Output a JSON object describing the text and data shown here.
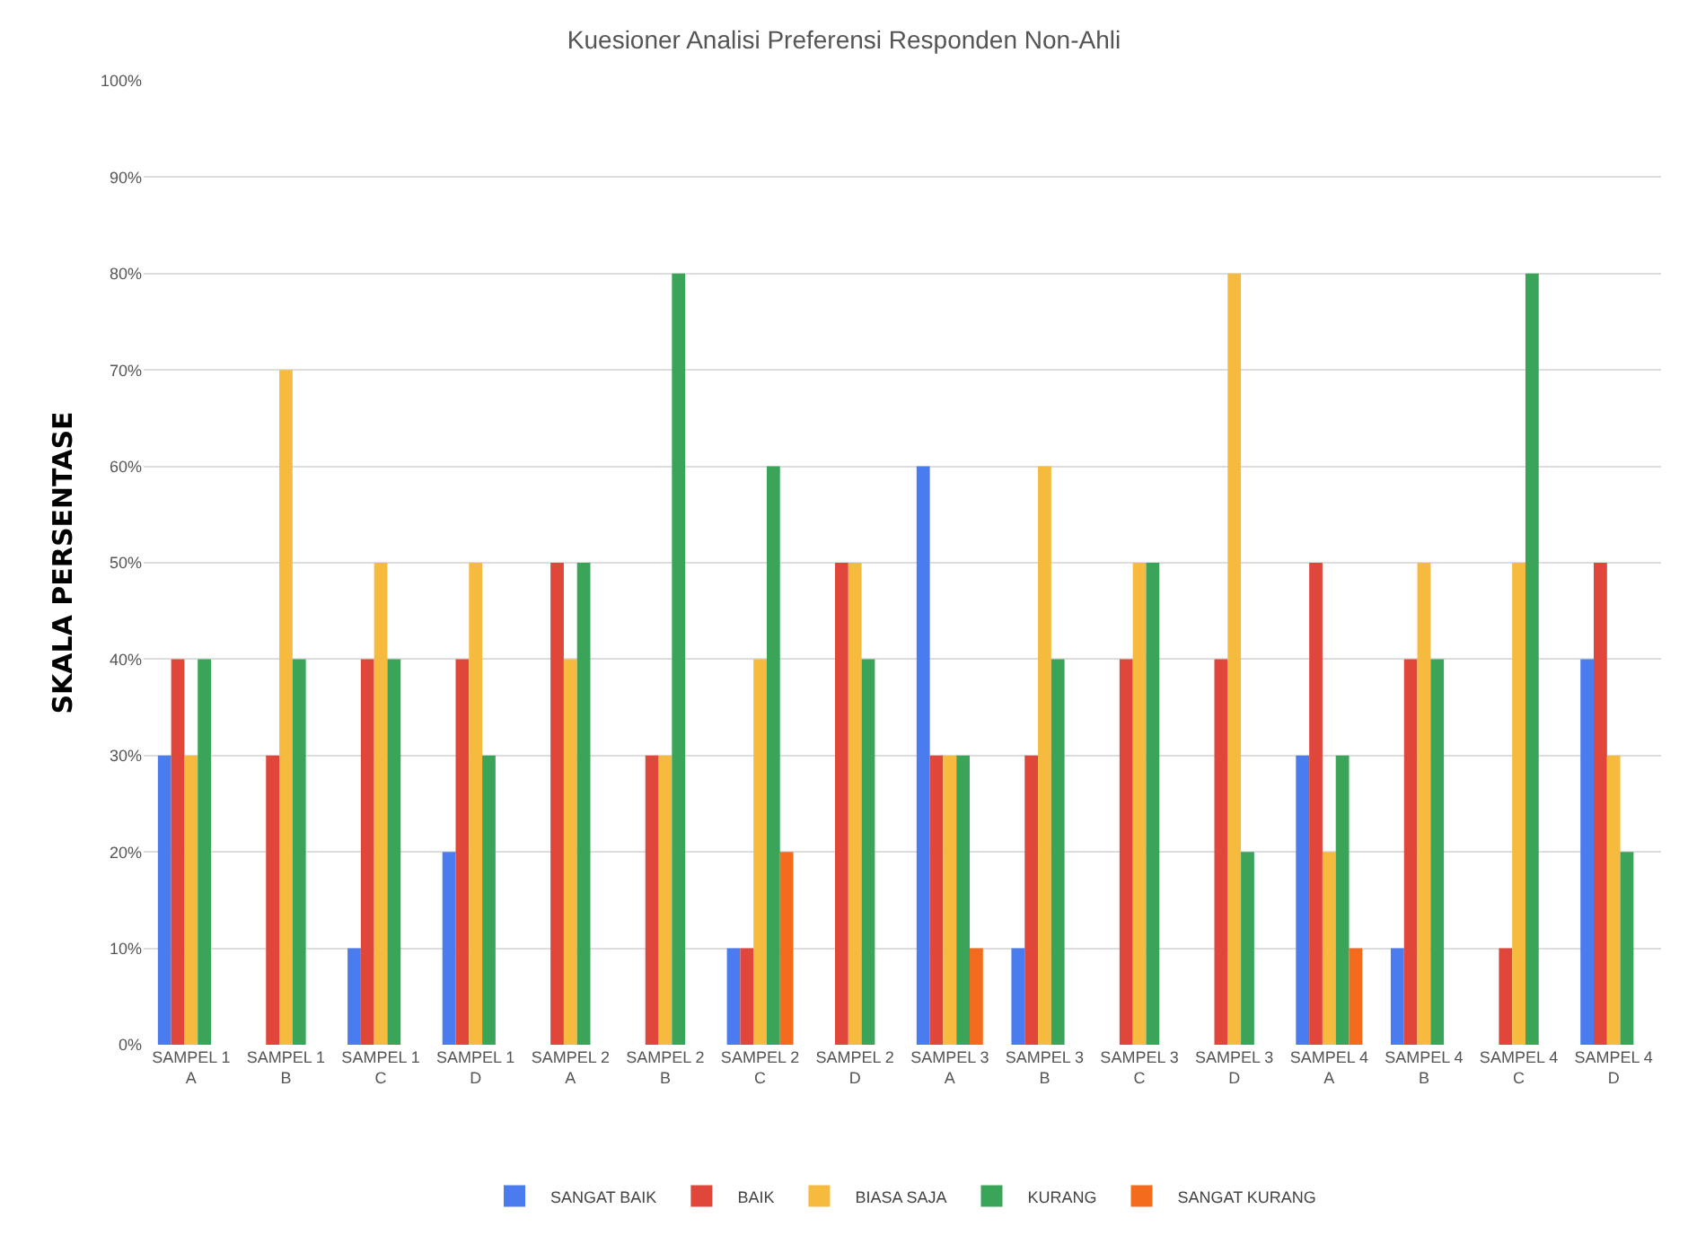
{
  "chart_data": {
    "type": "bar",
    "title": "Kuesioner Analisi Preferensi Responden Non-Ahli",
    "ylabel": "SKALA PERSENTASE",
    "categories": [
      "SAMPEL 1 A",
      "SAMPEL 1 B",
      "SAMPEL 1 C",
      "SAMPEL 1 D",
      "SAMPEL 2 A",
      "SAMPEL 2 B",
      "SAMPEL 2 C",
      "SAMPEL 2 D",
      "SAMPEL 3 A",
      "SAMPEL 3 B",
      "SAMPEL 3 C",
      "SAMPEL 3 D",
      "SAMPEL 4 A",
      "SAMPEL 4 B",
      "SAMPEL 4 C",
      "SAMPEL 4 D"
    ],
    "series": [
      {
        "name": "SANGAT BAIK",
        "color": "#4a7cf0",
        "values": [
          30,
          0,
          10,
          20,
          0,
          0,
          10,
          0,
          60,
          10,
          0,
          0,
          30,
          10,
          0,
          40
        ]
      },
      {
        "name": "BAIK",
        "color": "#e0463a",
        "values": [
          40,
          30,
          40,
          40,
          50,
          30,
          10,
          50,
          30,
          30,
          40,
          40,
          50,
          40,
          10,
          50
        ]
      },
      {
        "name": "BIASA SAJA",
        "color": "#f6bb3e",
        "values": [
          30,
          70,
          50,
          50,
          40,
          30,
          40,
          50,
          30,
          60,
          50,
          80,
          20,
          50,
          50,
          30
        ]
      },
      {
        "name": "KURANG",
        "color": "#3aa558",
        "values": [
          40,
          40,
          40,
          30,
          50,
          80,
          60,
          40,
          30,
          40,
          50,
          20,
          30,
          40,
          80,
          20
        ]
      },
      {
        "name": "SANGAT KURANG",
        "color": "#f56b1e",
        "values": [
          0,
          0,
          0,
          0,
          0,
          0,
          20,
          0,
          10,
          0,
          0,
          0,
          10,
          0,
          0,
          0
        ]
      }
    ],
    "ylim": [
      0,
      100
    ],
    "yticks": [
      {
        "value": 0,
        "label": "0%"
      },
      {
        "value": 10,
        "label": "10%"
      },
      {
        "value": 20,
        "label": "20%"
      },
      {
        "value": 30,
        "label": "30%"
      },
      {
        "value": 40,
        "label": "40%"
      },
      {
        "value": 50,
        "label": "50%"
      },
      {
        "value": 60,
        "label": "60%"
      },
      {
        "value": 70,
        "label": "70%"
      },
      {
        "value": 80,
        "label": "80%"
      },
      {
        "value": 90,
        "label": "90%"
      },
      {
        "value": 100,
        "label": "100%"
      }
    ],
    "grid": "y",
    "legend": "bottom"
  }
}
